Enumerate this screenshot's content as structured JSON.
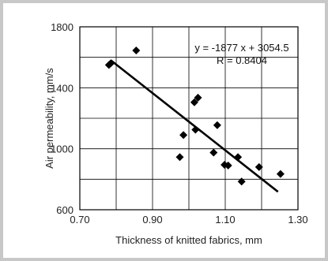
{
  "chart_data": {
    "type": "scatter",
    "xlabel": "Thickness of knitted fabrics, mm",
    "ylabel": "Air permeability, mm/s",
    "xlim": [
      0.7,
      1.3
    ],
    "ylim": [
      600,
      1800
    ],
    "x_ticks": [
      "0.70",
      "0.90",
      "1.10",
      "1.30"
    ],
    "y_ticks": [
      "600",
      "1000",
      "1400",
      "1800"
    ],
    "x_tick_values": [
      0.7,
      0.9,
      1.1,
      1.3
    ],
    "y_tick_values": [
      600,
      1000,
      1400,
      1800
    ],
    "grid": true,
    "points": [
      {
        "x": 0.78,
        "y": 1550
      },
      {
        "x": 0.785,
        "y": 1560
      },
      {
        "x": 0.855,
        "y": 1645
      },
      {
        "x": 0.975,
        "y": 945
      },
      {
        "x": 0.985,
        "y": 1090
      },
      {
        "x": 1.015,
        "y": 1305
      },
      {
        "x": 1.025,
        "y": 1335
      },
      {
        "x": 1.018,
        "y": 1125
      },
      {
        "x": 1.068,
        "y": 975
      },
      {
        "x": 1.078,
        "y": 1155
      },
      {
        "x": 1.098,
        "y": 895
      },
      {
        "x": 1.108,
        "y": 890
      },
      {
        "x": 1.135,
        "y": 945
      },
      {
        "x": 1.145,
        "y": 785
      },
      {
        "x": 1.193,
        "y": 880
      },
      {
        "x": 1.252,
        "y": 835
      }
    ],
    "trendline": {
      "x": [
        0.785,
        1.245
      ],
      "y": [
        1581,
        718
      ]
    },
    "annotations": [
      "y = -1877 x + 3054.5",
      "R = 0.8404"
    ]
  }
}
